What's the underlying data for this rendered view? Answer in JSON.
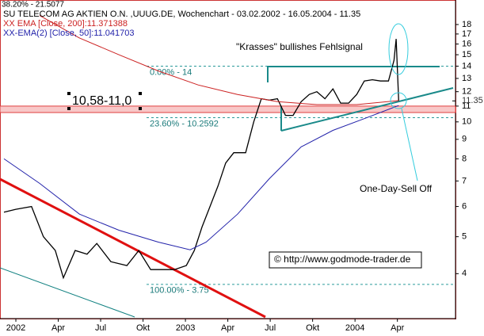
{
  "chart_data": {
    "type": "line",
    "top_note": "38.20% - 21.5077",
    "title": "SU TELECOM AG AKTIEN O.N. ,UUUG.DE, Wochenchart - 03.02.2002 - 16.05.2004 - 11.35",
    "log_scale": true,
    "ylim": [
      3.05,
      19.15
    ],
    "yticks": [
      4,
      5,
      6,
      7,
      8,
      9,
      10,
      11,
      12,
      13,
      14,
      15,
      16,
      17,
      18
    ],
    "xlim": [
      -0.374,
      10.37
    ],
    "xticks": [
      {
        "value": 0,
        "label": "2002"
      },
      {
        "value": 1,
        "label": "Apr"
      },
      {
        "value": 2,
        "label": "Jul"
      },
      {
        "value": 3,
        "label": "Okt"
      },
      {
        "value": 4,
        "label": "2003"
      },
      {
        "value": 5,
        "label": "Apr"
      },
      {
        "value": 6,
        "label": "Jul"
      },
      {
        "value": 7,
        "label": "Okt"
      },
      {
        "value": 8,
        "label": "2004"
      },
      {
        "value": 9,
        "label": "Apr"
      }
    ],
    "last_price": 11.35,
    "zone": [
      10.58,
      11.0
    ],
    "zone_label": "10,58-11,0",
    "fib_levels": [
      {
        "value": 14,
        "label": "0.00% - 14"
      },
      {
        "value": 10.2592,
        "label": "23.60% - 10.2592"
      },
      {
        "value": 3.75,
        "label": "100.00% - 3.75"
      }
    ],
    "annotations": [
      "\"Krasses\" bullishes Fehlsignal",
      "One-Day-Sell Off",
      "© http://www.godmode-trader.de"
    ],
    "series": [
      {
        "color": "#000000",
        "x": [
          -0.28,
          0,
          0.37,
          0.65,
          0.93,
          1.12,
          1.4,
          1.68,
          1.91,
          2.24,
          2.62,
          2.9,
          3.18,
          3.46,
          3.74,
          4.02,
          4.21,
          4.39,
          4.58,
          4.77,
          4.95,
          5.14,
          5.42,
          5.61,
          5.79,
          5.98,
          6.17,
          6.36,
          6.54,
          6.73,
          6.92,
          7.1,
          7.29,
          7.48,
          7.66,
          7.85,
          8.04,
          8.22,
          8.41,
          8.6,
          8.79,
          8.92,
          8.97,
          9.03
        ],
        "values": [
          5.8,
          5.9,
          6.0,
          5.0,
          4.6,
          3.9,
          4.6,
          4.5,
          4.8,
          4.3,
          4.2,
          4.6,
          4.1,
          4.1,
          4.1,
          4.2,
          4.6,
          5.3,
          6.0,
          6.8,
          7.8,
          8.3,
          8.3,
          10.0,
          11.5,
          11.4,
          11.5,
          10.4,
          10.4,
          11.3,
          11.8,
          12.0,
          11.5,
          12.2,
          11.2,
          11.2,
          11.8,
          12.8,
          12.9,
          12.8,
          12.8,
          14.5,
          16.5,
          11.35
        ]
      },
      {
        "name": "XX EMA [Close, 200]:11.371388",
        "color": "#cc2222",
        "x": [
          0.56,
          1.5,
          2.43,
          3.36,
          4.3,
          5.23,
          6.17,
          7.1,
          8.04,
          9.03
        ],
        "values": [
          19.0,
          16.6,
          15.0,
          13.6,
          12.5,
          11.8,
          11.3,
          11.1,
          11.1,
          11.371388
        ]
      },
      {
        "name": "XX-EMA(2) [Close, 50]:11.041703",
        "color": "#2222aa",
        "x": [
          -0.28,
          0.56,
          1.5,
          2.43,
          3.36,
          4.11,
          4.49,
          5.23,
          5.98,
          6.73,
          7.48,
          8.22,
          9.03
        ],
        "values": [
          8.0,
          6.9,
          5.73,
          5.2,
          4.84,
          4.62,
          4.84,
          5.73,
          7.1,
          8.6,
          9.5,
          10.2,
          11.041703
        ]
      }
    ]
  }
}
